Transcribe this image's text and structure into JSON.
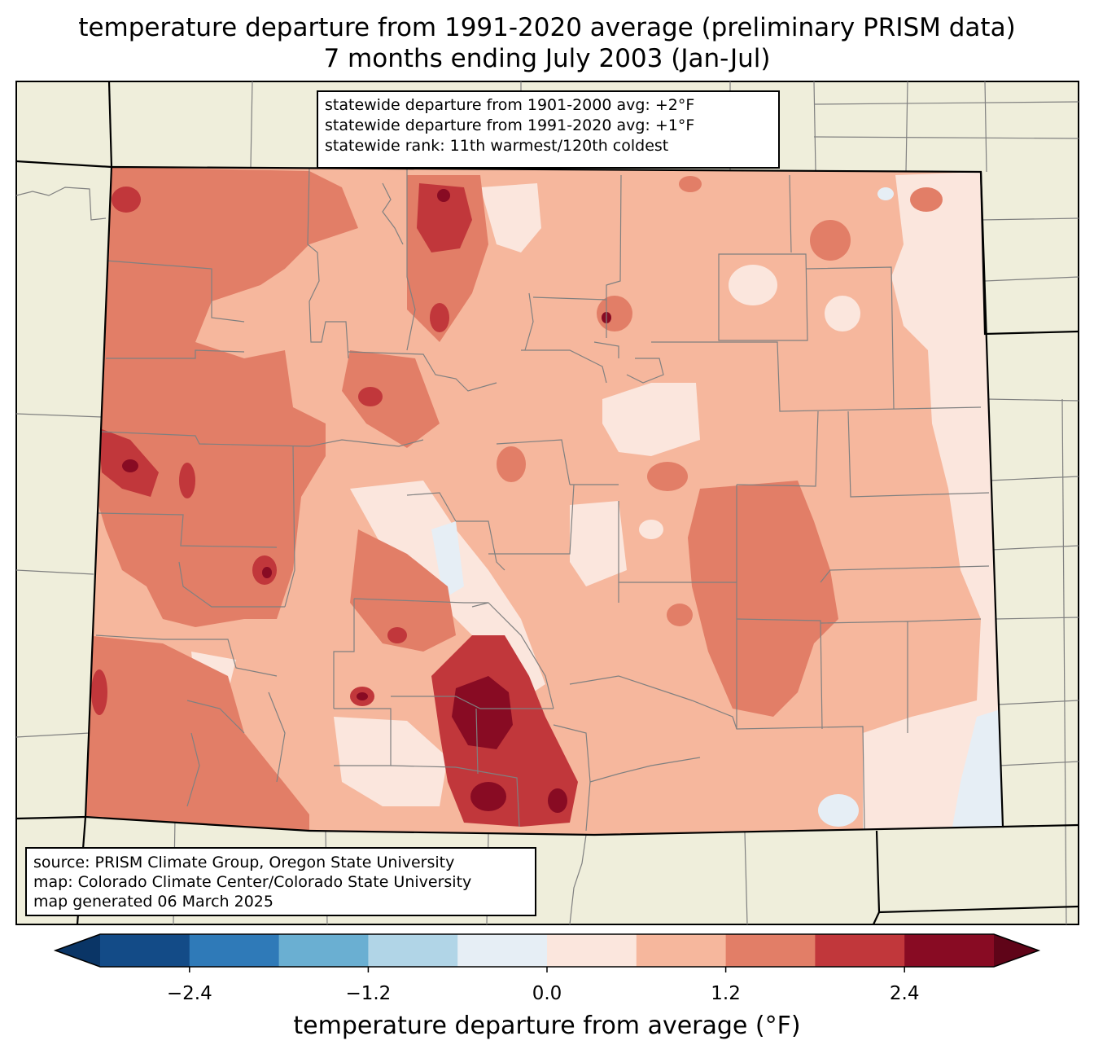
{
  "title": {
    "line1": "temperature departure from 1991-2020 average (preliminary PRISM data)",
    "line2": "7 months ending July 2003 (Jan-Jul)"
  },
  "stats": {
    "line1": "statewide departure from 1901-2000 avg: +2°F",
    "line2": "statewide departure from 1991-2020 avg: +1°F",
    "line3": "statewide rank: 11th warmest/120th coldest"
  },
  "source": {
    "line1": "source: PRISM Climate Group, Oregon State University",
    "line2": "map: Colorado Climate Center/Colorado State University",
    "line3": "map generated 06 March 2025"
  },
  "colorbar": {
    "label": "temperature departure from average (°F)",
    "ticks": [
      "−2.4",
      "−1.2",
      "0.0",
      "1.2",
      "2.4"
    ],
    "tick_values": [
      -2.4,
      -1.2,
      0.0,
      1.2,
      2.4
    ],
    "range": [
      -3.0,
      3.0
    ],
    "step": 0.6,
    "colors": [
      "#134b87",
      "#2f7ab8",
      "#6aafd2",
      "#b1d5e7",
      "#e6eef5",
      "#fbe6dd",
      "#f6b79d",
      "#e27e67",
      "#c1373b",
      "#880b23"
    ],
    "under_color": "#0a3566",
    "over_color": "#5f0418"
  },
  "map_colors": {
    "land": "#efeedb",
    "county_line": "#808080",
    "state_line": "#000000"
  }
}
